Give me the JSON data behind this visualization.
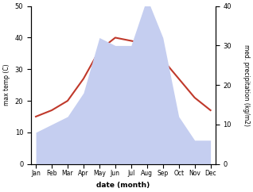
{
  "months": [
    "Jan",
    "Feb",
    "Mar",
    "Apr",
    "May",
    "Jun",
    "Jul",
    "Aug",
    "Sep",
    "Oct",
    "Nov",
    "Dec"
  ],
  "month_positions": [
    0,
    1,
    2,
    3,
    4,
    5,
    6,
    7,
    8,
    9,
    10,
    11
  ],
  "temperature": [
    15,
    17,
    20,
    27,
    36,
    40,
    39,
    38,
    33,
    27,
    21,
    17
  ],
  "precipitation": [
    8,
    10,
    12,
    18,
    32,
    30,
    30,
    42,
    32,
    12,
    6,
    6
  ],
  "temp_color": "#c0392b",
  "precip_fill_color": "#c5cef0",
  "temp_ylim": [
    0,
    50
  ],
  "precip_ylim": [
    0,
    40
  ],
  "temp_yticks": [
    0,
    10,
    20,
    30,
    40,
    50
  ],
  "precip_yticks": [
    0,
    10,
    20,
    30,
    40
  ],
  "ylabel_left": "max temp (C)",
  "ylabel_right": "med. precipitation (kg/m2)",
  "xlabel": "date (month)",
  "fig_width": 3.18,
  "fig_height": 2.42,
  "dpi": 100
}
